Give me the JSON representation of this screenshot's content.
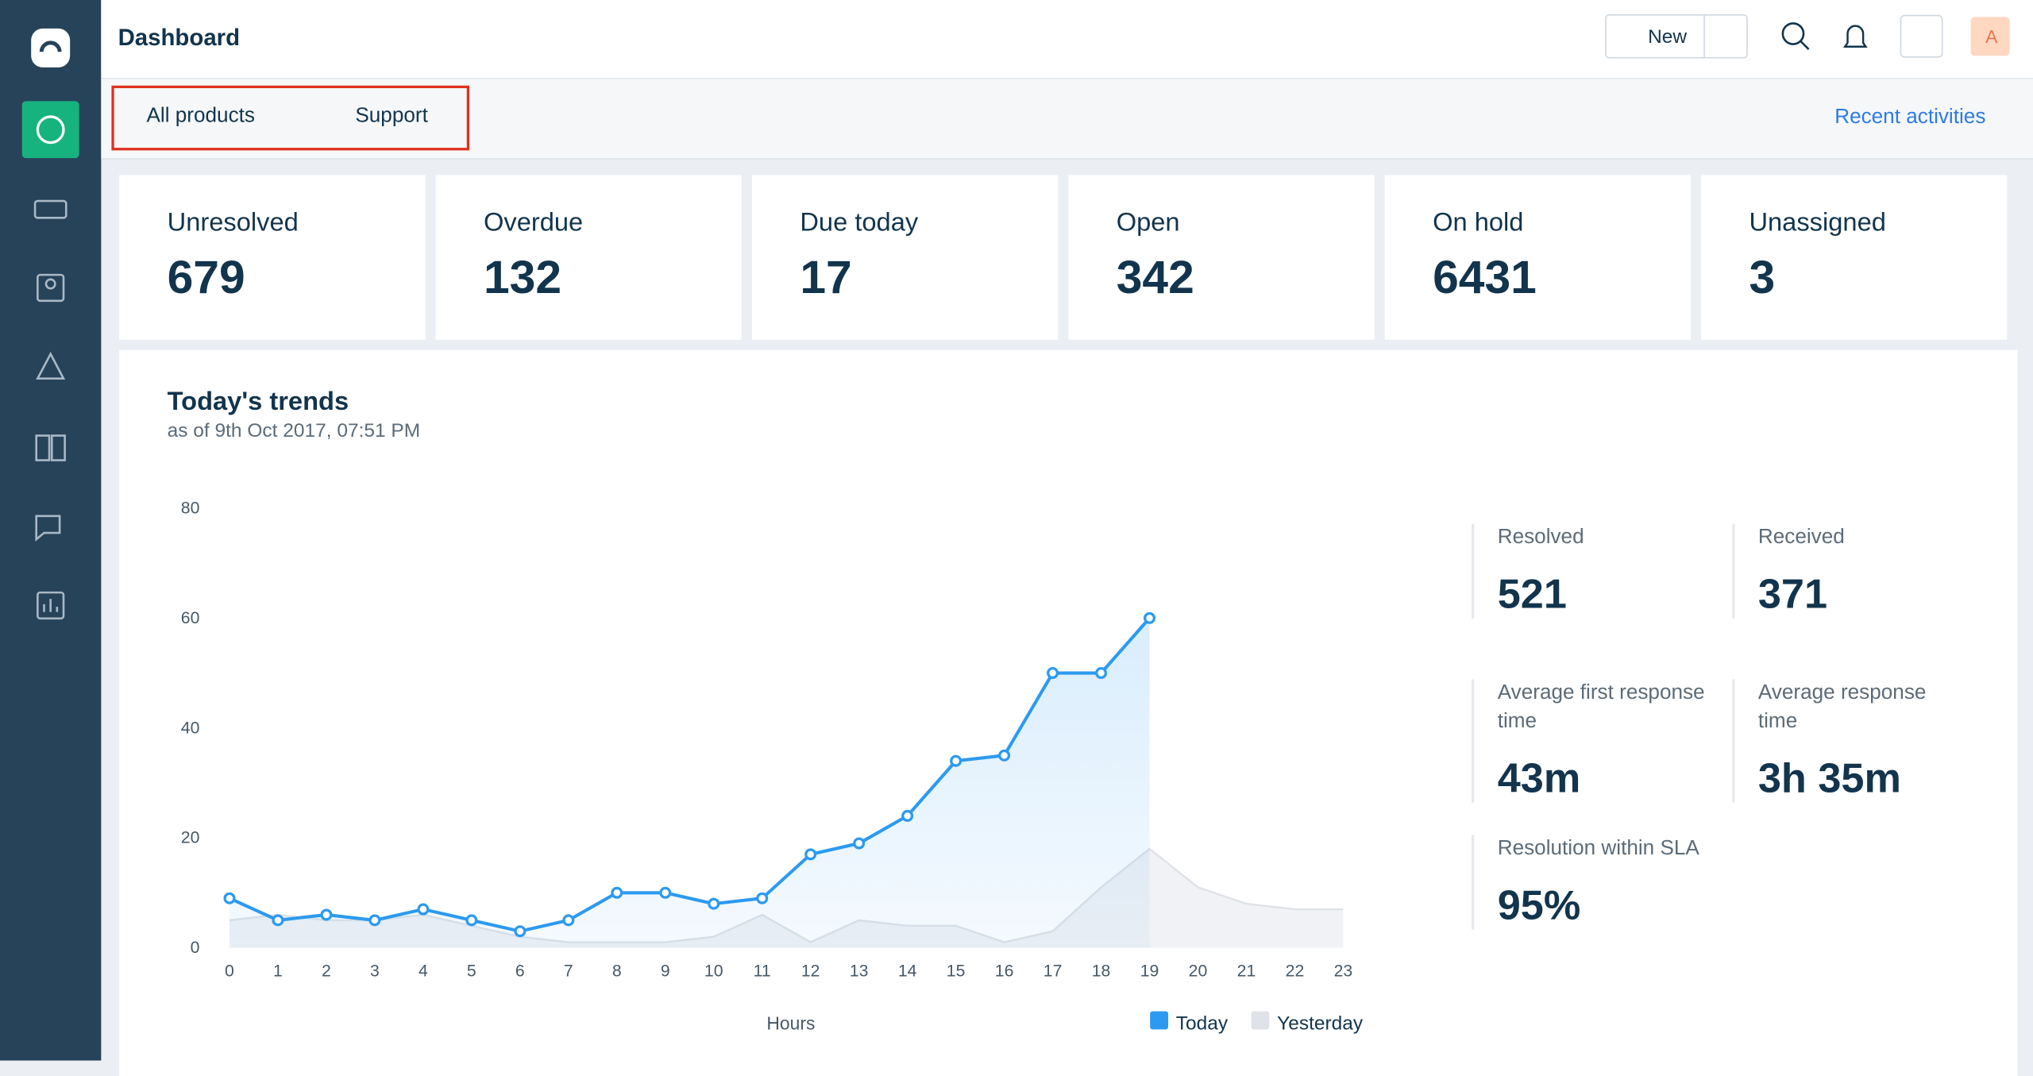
{
  "header": {
    "title": "Dashboard",
    "new_button": "New",
    "avatar": "A"
  },
  "filters": {
    "product": "All products",
    "group": "Support",
    "recent": "Recent activities"
  },
  "stats": [
    {
      "label": "Unresolved",
      "value": 679
    },
    {
      "label": "Overdue",
      "value": 132
    },
    {
      "label": "Due today",
      "value": 17
    },
    {
      "label": "Open",
      "value": 342
    },
    {
      "label": "On hold",
      "value": 6431
    },
    {
      "label": "Unassigned",
      "value": 3
    }
  ],
  "chart_data": {
    "type": "line",
    "title": "Today's trends",
    "subtitle": "as of 9th Oct 2017, 07:51 PM",
    "x_label": "Hours",
    "x": [
      0,
      1,
      2,
      3,
      4,
      5,
      6,
      7,
      8,
      9,
      10,
      11,
      12,
      13,
      14,
      15,
      16,
      17,
      18,
      19,
      20,
      21,
      22,
      23
    ],
    "xlim": [
      0,
      23
    ],
    "ylim": [
      0,
      80
    ],
    "yticks": [
      0,
      20,
      40,
      60,
      80
    ],
    "legend": "bottom-right",
    "series": [
      {
        "name": "Today",
        "color": "#2c9af0",
        "values": [
          9,
          5,
          6,
          5,
          7,
          5,
          3,
          5,
          10,
          10,
          8,
          9,
          17,
          19,
          24,
          34,
          35,
          50,
          50,
          60,
          null,
          null,
          null,
          null
        ]
      },
      {
        "name": "Yesterday",
        "color": "#dfe3e8",
        "values": [
          5,
          6,
          5,
          5,
          6,
          4,
          2,
          1,
          1,
          1,
          2,
          6,
          1,
          5,
          4,
          4,
          1,
          3,
          11,
          18,
          11,
          8,
          7,
          7
        ]
      }
    ]
  },
  "metrics": [
    {
      "label": "Resolved",
      "value": 521
    },
    {
      "label": "Received",
      "value": 371
    },
    {
      "label": "Average first response time",
      "value": "43m"
    },
    {
      "label": "Average response time",
      "value": "3h 35m"
    },
    {
      "label": "Resolution within SLA",
      "value": "95%"
    }
  ]
}
